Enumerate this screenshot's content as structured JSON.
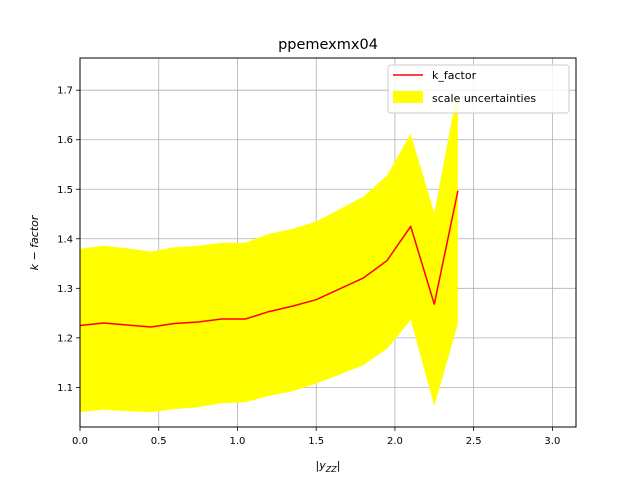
{
  "chart_data": {
    "type": "line",
    "title": "ppemexmx04",
    "xlabel": "|y_{ZZ}|",
    "ylabel": "k − factor",
    "xlim": [
      0,
      3.15
    ],
    "ylim": [
      1.02,
      1.765
    ],
    "xticks": [
      0.0,
      0.5,
      1.0,
      1.5,
      2.0,
      2.5,
      3.0
    ],
    "xtick_labels": [
      "0.0",
      "0.5",
      "1.0",
      "1.5",
      "2.0",
      "2.5",
      "3.0"
    ],
    "yticks": [
      1.1,
      1.2,
      1.3,
      1.4,
      1.5,
      1.6,
      1.7
    ],
    "ytick_labels": [
      "1.1",
      "1.2",
      "1.3",
      "1.4",
      "1.5",
      "1.6",
      "1.7"
    ],
    "grid": true,
    "legend_position": "top-right",
    "x": [
      0.0,
      0.15,
      0.3,
      0.45,
      0.6,
      0.75,
      0.9,
      1.05,
      1.2,
      1.35,
      1.5,
      1.65,
      1.8,
      1.95,
      2.1,
      2.25,
      2.4
    ],
    "series": [
      {
        "name": "k_factor",
        "kind": "line",
        "color": "#ff0000",
        "values": [
          1.225,
          1.23,
          1.226,
          1.222,
          1.229,
          1.232,
          1.238,
          1.238,
          1.253,
          1.264,
          1.277,
          1.299,
          1.321,
          1.356,
          1.425,
          1.268,
          1.497
        ]
      },
      {
        "name": "scale uncertainties",
        "kind": "band",
        "color": "#ffff00",
        "lower": [
          1.05,
          1.055,
          1.052,
          1.05,
          1.056,
          1.06,
          1.068,
          1.07,
          1.083,
          1.092,
          1.108,
          1.126,
          1.145,
          1.178,
          1.236,
          1.063,
          1.228
        ],
        "upper": [
          1.38,
          1.386,
          1.381,
          1.374,
          1.383,
          1.386,
          1.392,
          1.392,
          1.41,
          1.42,
          1.435,
          1.46,
          1.485,
          1.528,
          1.612,
          1.452,
          1.705
        ]
      }
    ]
  }
}
